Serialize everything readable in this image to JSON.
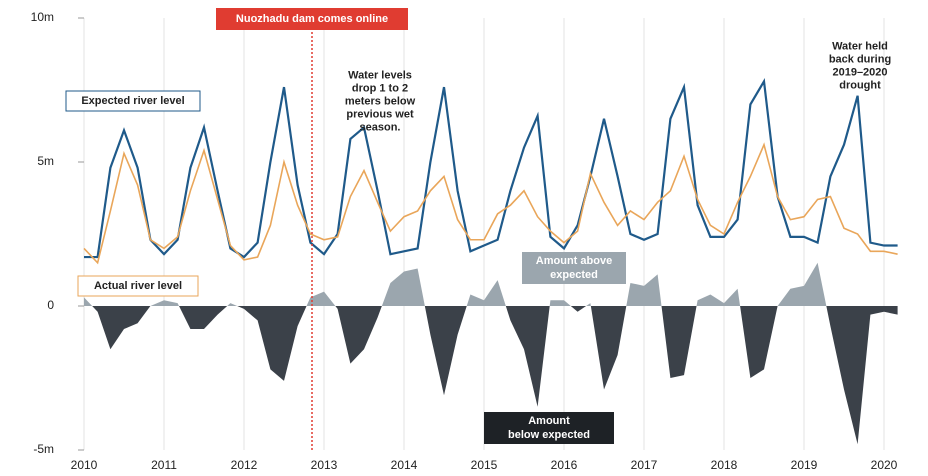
{
  "chart_data": {
    "type": "line",
    "x": [
      2010,
      2010.17,
      2010.33,
      2010.5,
      2010.67,
      2010.83,
      2011,
      2011.17,
      2011.33,
      2011.5,
      2011.67,
      2011.83,
      2012,
      2012.17,
      2012.33,
      2012.5,
      2012.67,
      2012.83,
      2013,
      2013.17,
      2013.33,
      2013.5,
      2013.67,
      2013.83,
      2014,
      2014.17,
      2014.33,
      2014.5,
      2014.67,
      2014.83,
      2015,
      2015.17,
      2015.33,
      2015.5,
      2015.67,
      2015.83,
      2016,
      2016.17,
      2016.33,
      2016.5,
      2016.67,
      2016.83,
      2017,
      2017.17,
      2017.33,
      2017.5,
      2017.67,
      2017.83,
      2018,
      2018.17,
      2018.33,
      2018.5,
      2018.67,
      2018.83,
      2019,
      2019.17,
      2019.33,
      2019.5,
      2019.67,
      2019.83,
      2020,
      2020.17
    ],
    "series": [
      {
        "name": "Expected river level",
        "color": "#1f5a8a",
        "values": [
          1.7,
          1.7,
          4.8,
          6.1,
          4.8,
          2.3,
          1.8,
          2.3,
          4.8,
          6.2,
          4.0,
          2.0,
          1.7,
          2.2,
          5.0,
          7.6,
          4.2,
          2.2,
          1.8,
          2.5,
          5.8,
          6.2,
          4.0,
          1.8,
          1.9,
          2.0,
          5.0,
          7.6,
          4.0,
          1.9,
          2.1,
          2.3,
          4.0,
          5.5,
          6.6,
          2.4,
          2.0,
          2.8,
          4.5,
          6.5,
          4.5,
          2.5,
          2.3,
          2.5,
          6.5,
          7.6,
          3.5,
          2.4,
          2.4,
          3.0,
          7.0,
          7.8,
          3.8,
          2.4,
          2.4,
          2.2,
          4.5,
          5.6,
          7.3,
          2.2,
          2.1,
          2.1
        ]
      },
      {
        "name": "Actual river level",
        "color": "#e9a65a",
        "values": [
          2.0,
          1.5,
          3.3,
          5.3,
          4.2,
          2.3,
          2.0,
          2.4,
          4.0,
          5.4,
          3.7,
          2.1,
          1.6,
          1.7,
          2.8,
          5.0,
          3.5,
          2.5,
          2.3,
          2.4,
          3.8,
          4.7,
          3.6,
          2.6,
          3.1,
          3.3,
          4.0,
          4.5,
          3.0,
          2.3,
          2.3,
          3.2,
          3.5,
          4.0,
          3.1,
          2.6,
          2.2,
          2.6,
          4.6,
          3.6,
          2.8,
          3.3,
          3.0,
          3.6,
          4.0,
          5.2,
          3.7,
          2.8,
          2.5,
          3.6,
          4.5,
          5.6,
          3.8,
          3.0,
          3.1,
          3.7,
          3.8,
          2.7,
          2.5,
          1.9,
          1.9,
          1.8
        ]
      }
    ],
    "difference": {
      "values": [
        0.3,
        -0.2,
        -1.5,
        -0.8,
        -0.6,
        0.0,
        0.2,
        0.1,
        -0.8,
        -0.8,
        -0.3,
        0.1,
        -0.1,
        -0.5,
        -2.2,
        -2.6,
        -0.7,
        0.3,
        0.5,
        -0.1,
        -2.0,
        -1.5,
        -0.4,
        0.8,
        1.2,
        1.3,
        -1.0,
        -3.1,
        -1.0,
        0.4,
        0.2,
        0.9,
        -0.5,
        -1.5,
        -3.5,
        0.2,
        0.2,
        -0.2,
        0.1,
        -2.9,
        -1.7,
        0.8,
        0.7,
        1.1,
        -2.5,
        -2.4,
        0.2,
        0.4,
        0.1,
        0.6,
        -2.5,
        -2.2,
        0.0,
        0.6,
        0.7,
        1.5,
        -0.7,
        -2.9,
        -4.8,
        -0.3,
        -0.2,
        -0.3
      ],
      "above_color": "#9ba6ae",
      "below_color": "#3b4149",
      "above_label": [
        "Amount above",
        "expected"
      ],
      "below_label": [
        "Amount",
        "below expected"
      ]
    },
    "xlim": [
      2010,
      2020.25
    ],
    "xticks": [
      2010,
      2011,
      2012,
      2013,
      2014,
      2015,
      2016,
      2017,
      2018,
      2019,
      2020
    ],
    "ylim": [
      -5,
      10
    ],
    "yticks": [
      {
        "value": -5,
        "label": "-5m"
      },
      0,
      {
        "value": 5,
        "label": "5m"
      },
      {
        "value": 10,
        "label": "10m"
      }
    ],
    "grid": "x",
    "event": {
      "x": 2012.85,
      "label": "Nuozhadu dam comes online",
      "color": "#e03c31"
    },
    "annotations": [
      {
        "x": 2013.7,
        "y": 8.0,
        "lines": [
          "Water levels",
          "drop 1 to 2",
          "meters below",
          "previous wet",
          "season."
        ]
      },
      {
        "x": 2019.7,
        "y": 9.0,
        "lines": [
          "Water held",
          "back during",
          "2019–2020",
          "drought"
        ]
      }
    ]
  }
}
